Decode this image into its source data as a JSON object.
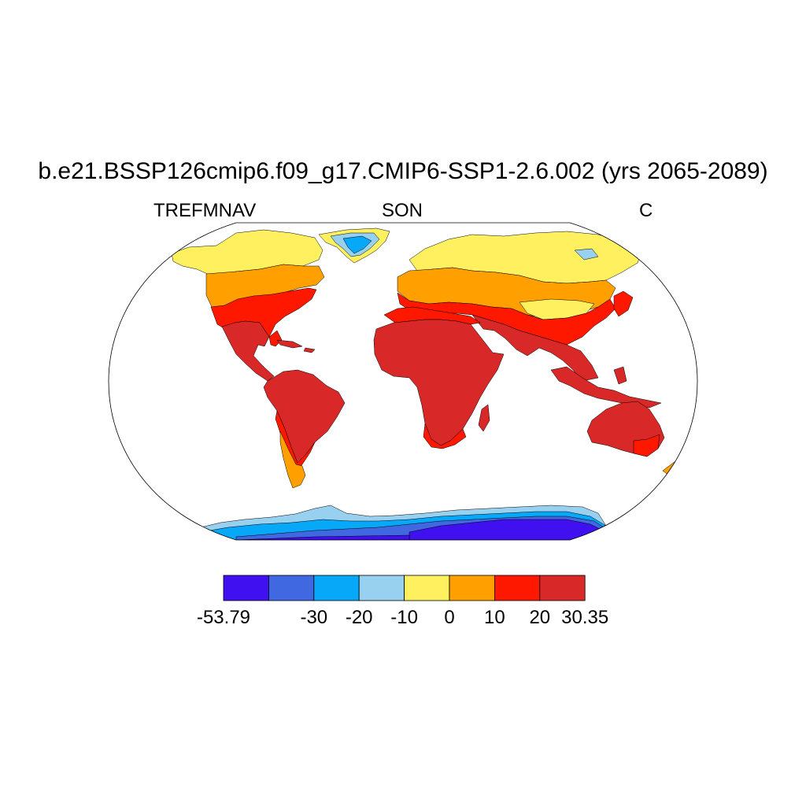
{
  "title": "b.e21.BSSP126cmip6.f09_g17.CMIP6-SSP1-2.6.002 (yrs 2065-2089)",
  "left_string": "TREFMNAV",
  "center_string": "SON",
  "right_string": "C",
  "colorbar": {
    "colors": [
      "#4010f0",
      "#4068e0",
      "#08a8f8",
      "#98d0f0",
      "#fff060",
      "#ffa000",
      "#ff1800",
      "#d82828"
    ],
    "labels": [
      "-53.79",
      "",
      "-30",
      "-20",
      "-10",
      "0",
      "10",
      "20",
      "30.35"
    ]
  }
}
